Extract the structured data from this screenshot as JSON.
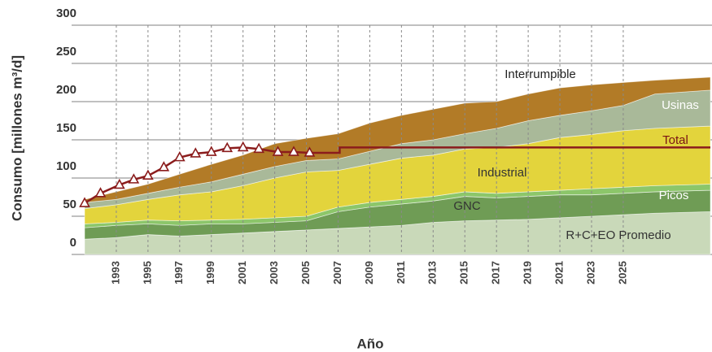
{
  "chart_data": {
    "type": "stacked_area",
    "x_label": "Año",
    "y_label": "Consumo [millones m³/d]",
    "x": [
      1991,
      1993,
      1995,
      1997,
      1999,
      2001,
      2003,
      2005,
      2007,
      2009,
      2011,
      2013,
      2015,
      2017,
      2019,
      2021,
      2023,
      2025,
      2027,
      2030.5
    ],
    "series": [
      {
        "name": "R+C+EO Promedio",
        "color": "#c9d9b9",
        "values": [
          20,
          22,
          26,
          24,
          26,
          28,
          30,
          32,
          34,
          36,
          38,
          42,
          44,
          45,
          46,
          48,
          50,
          52,
          54,
          56
        ]
      },
      {
        "name": "GNC",
        "color": "#6f9c55",
        "values": [
          15,
          16,
          14,
          14,
          14,
          12,
          12,
          12,
          22,
          26,
          28,
          28,
          32,
          29,
          30,
          30,
          28,
          28,
          28,
          28
        ]
      },
      {
        "name": "Picos",
        "color": "#8cc66a",
        "values": [
          5,
          4,
          5,
          6,
          5,
          6,
          6,
          6,
          6,
          6,
          6,
          6,
          6,
          6,
          6,
          6,
          8,
          8,
          8,
          8
        ]
      },
      {
        "name": "Industrial",
        "color": "#e3d43c",
        "values": [
          20,
          23,
          27,
          34,
          37,
          44,
          52,
          58,
          48,
          50,
          54,
          54,
          56,
          60,
          63,
          69,
          71,
          74,
          75,
          76
        ]
      },
      {
        "name": "Usinas",
        "color": "#a9b999",
        "values": [
          8,
          7,
          8,
          10,
          13,
          15,
          15,
          15,
          15,
          17,
          19,
          20,
          20,
          25,
          30,
          29,
          31,
          33,
          45,
          47
        ]
      },
      {
        "name": "Interrumpible",
        "color": "#b27b27",
        "values": [
          4,
          10,
          12,
          17,
          23,
          25,
          30,
          29,
          33,
          37,
          37,
          40,
          40,
          35,
          35,
          36,
          34,
          30,
          18,
          17
        ]
      },
      {
        "name": "Total",
        "type": "line",
        "color": "#8b1c1c",
        "marker": "triangle",
        "x": [
          1991,
          1992,
          1993.2,
          1994.1,
          1995,
          1996,
          1997,
          1998,
          1999,
          2000,
          2001,
          2002,
          2003.2,
          2004.2,
          2005.2
        ],
        "values": [
          67,
          80,
          91,
          98,
          103,
          114,
          127,
          132,
          134,
          139,
          140,
          138,
          134,
          134,
          133
        ],
        "projection": {
          "x": [
            2005.2,
            2007.1,
            2007.1,
            2030.5
          ],
          "values": [
            133,
            133,
            140,
            140
          ]
        }
      }
    ],
    "xlim": [
      1991,
      2030.5
    ],
    "xticks": [
      1993,
      1995,
      1997,
      1999,
      2001,
      2003,
      2005,
      2007,
      2009,
      2011,
      2013,
      2015,
      2017,
      2019,
      2021,
      2023,
      2025
    ],
    "ylim": [
      0,
      300
    ],
    "yticks": [
      0,
      50,
      100,
      150,
      200,
      250,
      300
    ],
    "grid": true
  }
}
